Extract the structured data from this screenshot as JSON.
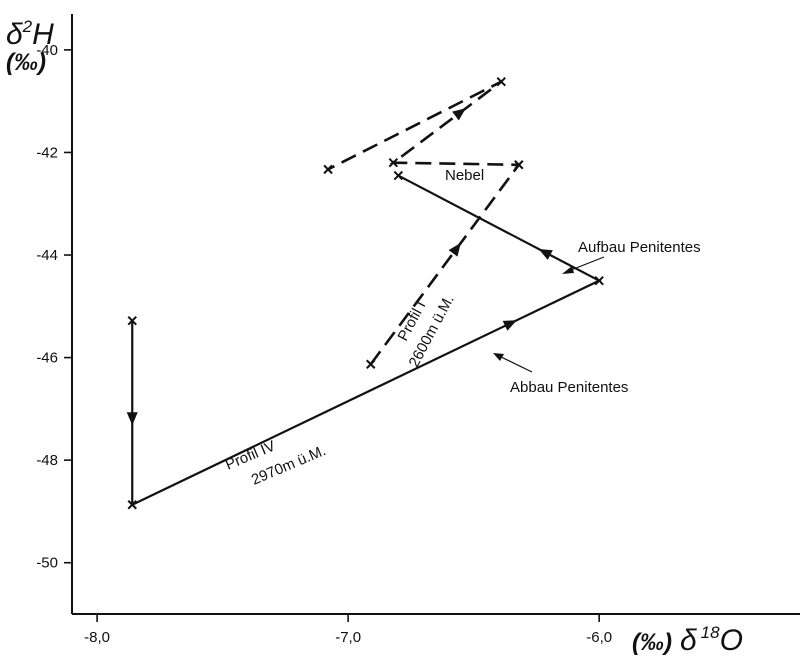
{
  "chart_data": {
    "type": "line",
    "y_axis_title": {
      "symbol": "δ",
      "superscript": "2",
      "element": "H",
      "unit": "(‰)"
    },
    "x_axis_title": {
      "unit": "(‰)",
      "symbol": "δ",
      "superscript": "18",
      "element": "O"
    },
    "xlim": [
      -8.1,
      -5.2
    ],
    "ylim": [
      -51.0,
      -39.3
    ],
    "x_ticks": [
      -8.0,
      -7.0,
      -6.0
    ],
    "x_tick_labels": [
      "-8,0",
      "-7,0",
      "-6,0"
    ],
    "y_ticks": [
      -40,
      -42,
      -44,
      -46,
      -48,
      -50
    ],
    "y_tick_labels": [
      "-40",
      "-42",
      "-44",
      "-46",
      "-48",
      "-50"
    ],
    "grid": false,
    "series": [
      {
        "name": "Profil IV",
        "subtitle": "2970m ü.M.",
        "style": "solid",
        "points": [
          {
            "x": -7.86,
            "y": -45.28
          },
          {
            "x": -7.86,
            "y": -48.87
          },
          {
            "x": -6.0,
            "y": -44.5
          },
          {
            "x": -6.8,
            "y": -42.45
          }
        ]
      },
      {
        "name": "Profil I",
        "subtitle": "2600m ü.M.",
        "style": "dashed",
        "points": [
          {
            "x": -6.91,
            "y": -46.13
          },
          {
            "x": -6.32,
            "y": -42.24
          },
          {
            "x": -6.82,
            "y": -42.2
          },
          {
            "x": -6.39,
            "y": -40.62
          },
          {
            "x": -7.08,
            "y": -42.33
          }
        ]
      }
    ],
    "annotations": [
      {
        "id": "nebel",
        "text": "Nebel"
      },
      {
        "id": "aufbau",
        "text": "Aufbau Penitentes"
      },
      {
        "id": "abbau",
        "text": "Abbau Penitentes"
      }
    ],
    "direction_arrows": [
      {
        "series": "Profil IV",
        "segment": 0,
        "at": 0.53
      },
      {
        "series": "Profil IV",
        "segment": 1,
        "at": 0.81
      },
      {
        "series": "Profil IV",
        "segment": 2,
        "at": 0.27
      },
      {
        "series": "Profil I",
        "segment": 0,
        "at": 0.58
      },
      {
        "series": "Profil I",
        "segment": 2,
        "at": 0.62
      }
    ]
  }
}
